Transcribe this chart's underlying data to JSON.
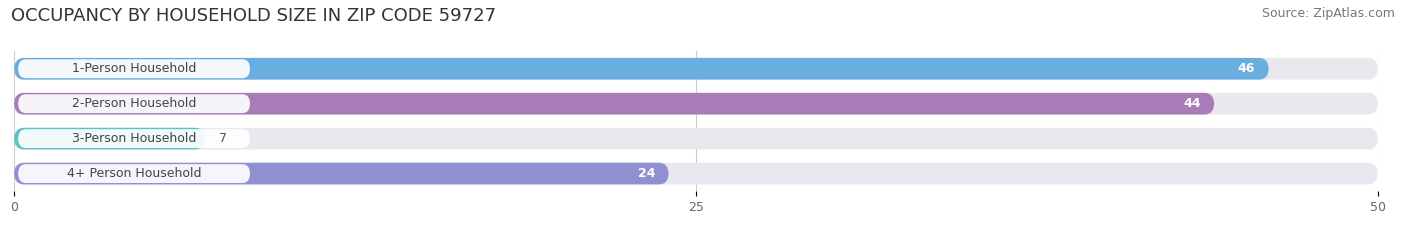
{
  "title": "OCCUPANCY BY HOUSEHOLD SIZE IN ZIP CODE 59727",
  "source": "Source: ZipAtlas.com",
  "categories": [
    "1-Person Household",
    "2-Person Household",
    "3-Person Household",
    "4+ Person Household"
  ],
  "values": [
    46,
    44,
    7,
    24
  ],
  "bar_colors": [
    "#6aaee0",
    "#a87cb8",
    "#5ec4c0",
    "#9090d0"
  ],
  "xlim": [
    0,
    50
  ],
  "xticks": [
    0,
    25,
    50
  ],
  "background_color": "#ffffff",
  "bar_bg_color": "#e8e8ee",
  "title_fontsize": 13,
  "source_fontsize": 9,
  "label_fontsize": 9,
  "value_fontsize": 9,
  "value_inside_threshold": 10,
  "bar_height": 0.62,
  "bar_gap": 1.0
}
